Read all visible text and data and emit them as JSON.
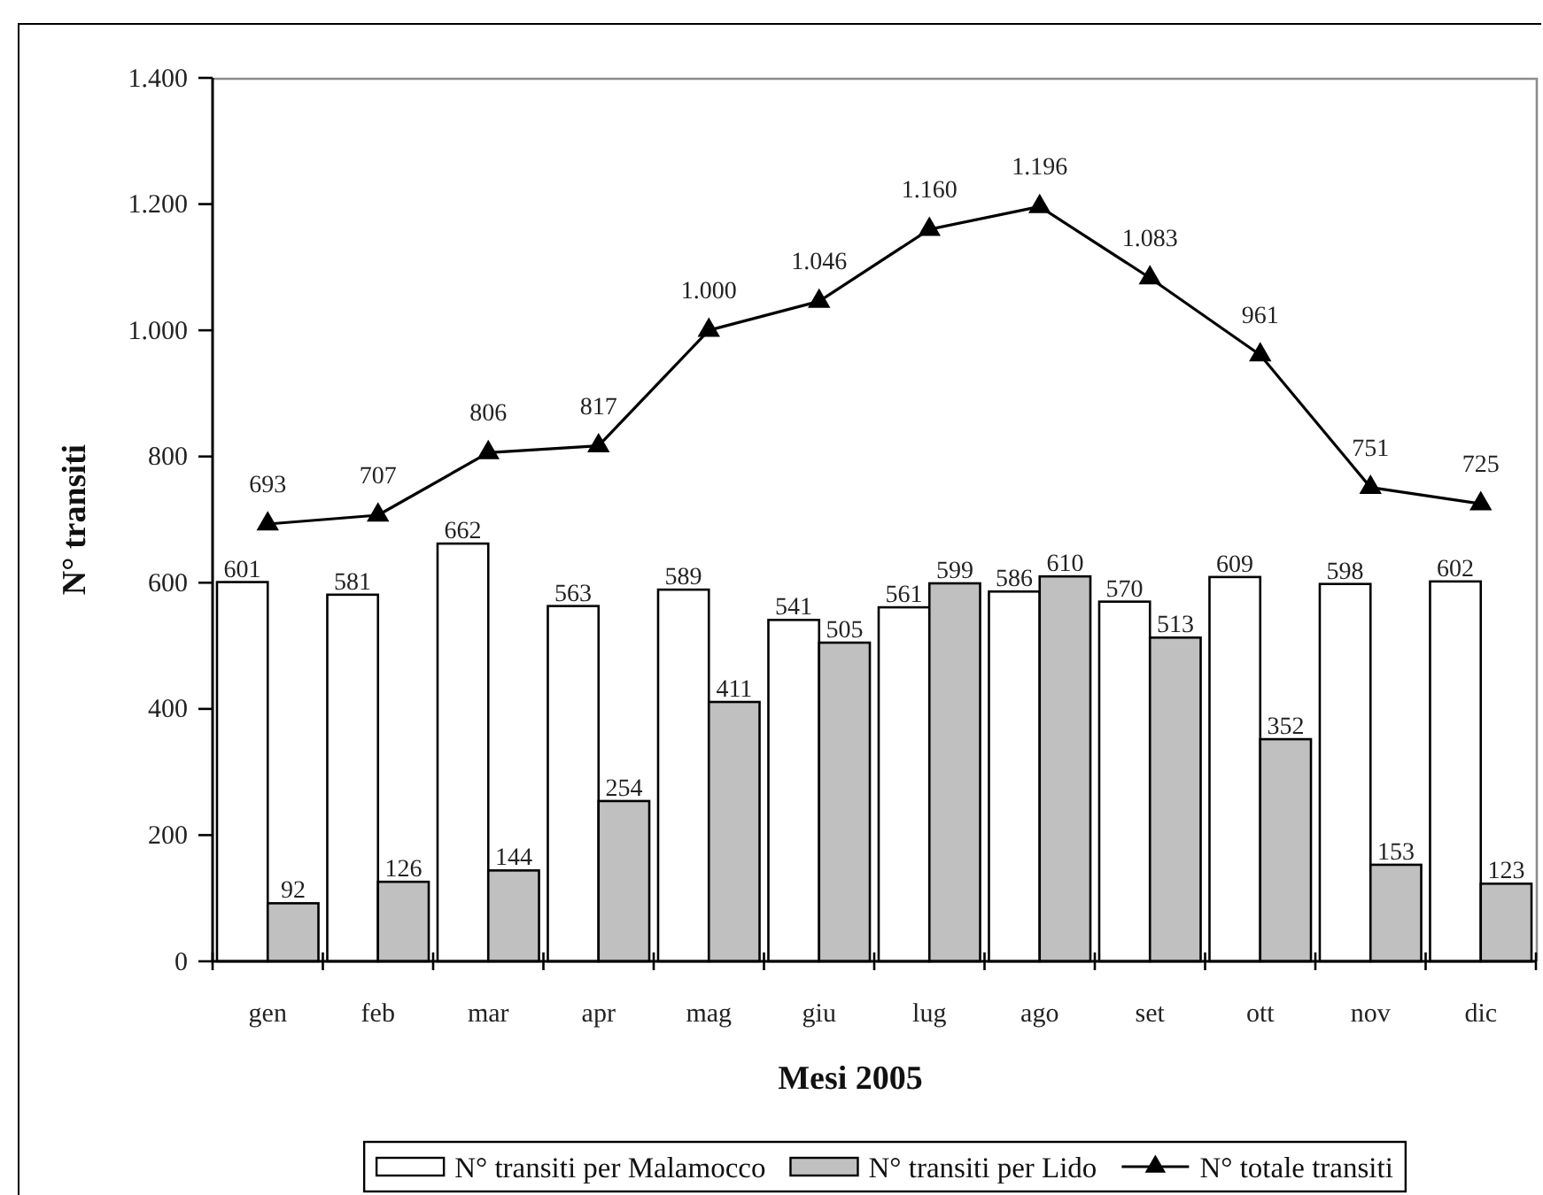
{
  "chart_data": {
    "type": "bar",
    "xlabel": "Mesi 2005",
    "ylabel": "N° transiti",
    "categories": [
      "gen",
      "feb",
      "mar",
      "apr",
      "mag",
      "giu",
      "lug",
      "ago",
      "set",
      "ott",
      "nov",
      "dic"
    ],
    "series": [
      {
        "name": "N° transiti per Malamocco",
        "color": "#ffffff",
        "values": [
          601,
          581,
          662,
          563,
          589,
          541,
          561,
          586,
          570,
          609,
          598,
          602
        ]
      },
      {
        "name": "N° transiti per Lido",
        "color": "#c0c0c0",
        "values": [
          92,
          126,
          144,
          254,
          411,
          505,
          599,
          610,
          513,
          352,
          153,
          123
        ]
      },
      {
        "name": "N° totale transiti",
        "type": "line",
        "color": "#000000",
        "values": [
          693,
          707,
          806,
          817,
          1000,
          1046,
          1160,
          1196,
          1083,
          961,
          751,
          725
        ],
        "value_labels": [
          "693",
          "707",
          "806",
          "817",
          "1.000",
          "1.046",
          "1.160",
          "1.196",
          "1.083",
          "961",
          "751",
          "725"
        ]
      }
    ],
    "ylim": [
      0,
      1400
    ],
    "yticks": [
      0,
      200,
      400,
      600,
      800,
      {
        "value": 1000,
        "label": "1.000"
      },
      {
        "value": 1200,
        "label": "1.200"
      },
      {
        "value": 1400,
        "label": "1.400"
      }
    ],
    "data_labels": true,
    "marker": "triangle",
    "legend": "bottom",
    "grid": false
  }
}
